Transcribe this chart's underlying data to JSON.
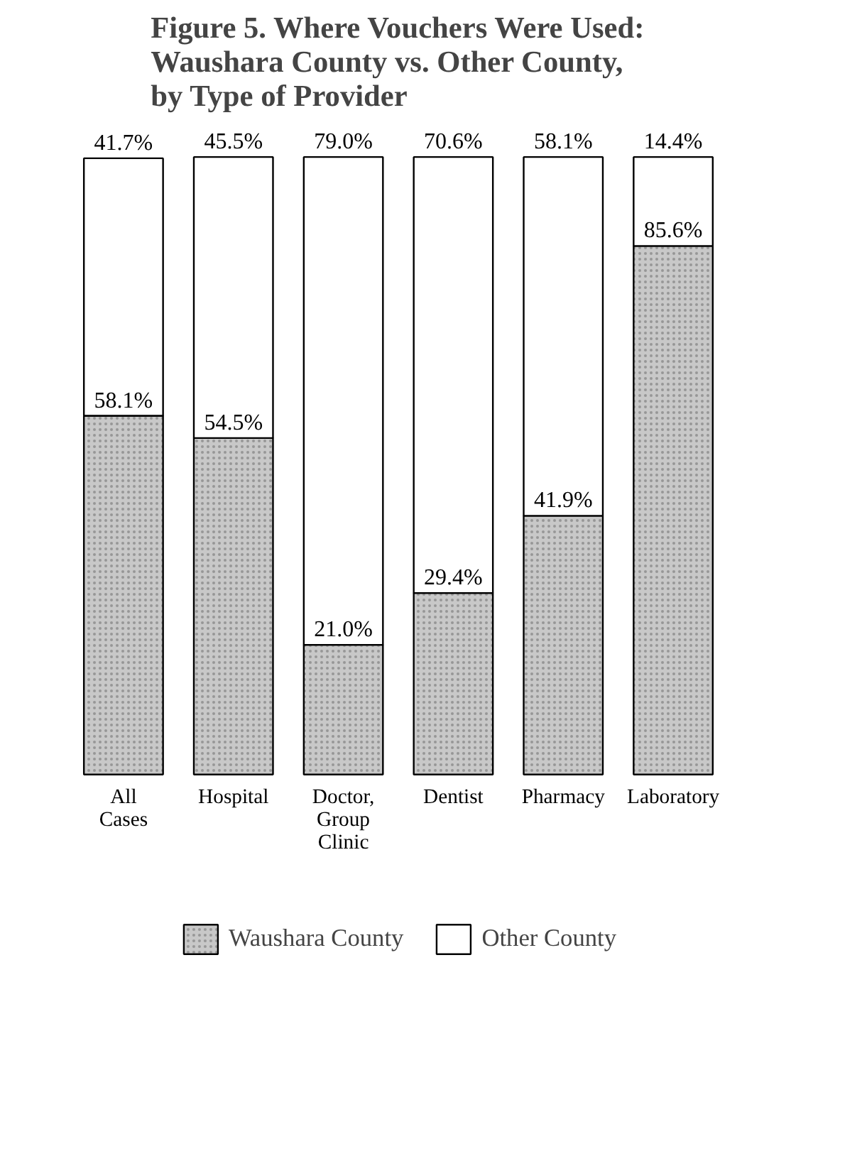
{
  "chart_data": {
    "type": "bar",
    "title": "Figure 5. Where Vouchers Were Used:\nWaushara County vs. Other County,\nby Type of Provider",
    "categories": [
      "All\nCases",
      "Hospital",
      "Doctor,\nGroup\nClinic",
      "Dentist",
      "Pharmacy",
      "Laboratory"
    ],
    "stacked": true,
    "series": [
      {
        "name": "Waushara County",
        "color": "#c8c8c8",
        "values": [
          58.1,
          54.5,
          21.0,
          29.4,
          41.9,
          85.6
        ],
        "value_labels": [
          "58.1%",
          "54.5%",
          "21.0%",
          "29.4%",
          "41.9%",
          "85.6%"
        ]
      },
      {
        "name": "Other County",
        "color": "#ffffff",
        "values": [
          41.7,
          45.5,
          79.0,
          70.6,
          58.1,
          14.4
        ],
        "value_labels": [
          "41.7%",
          "45.5%",
          "79.0%",
          "70.6%",
          "58.1%",
          "14.4%"
        ]
      }
    ],
    "legend": "bottom",
    "tick_labels": "x",
    "grid": false
  }
}
